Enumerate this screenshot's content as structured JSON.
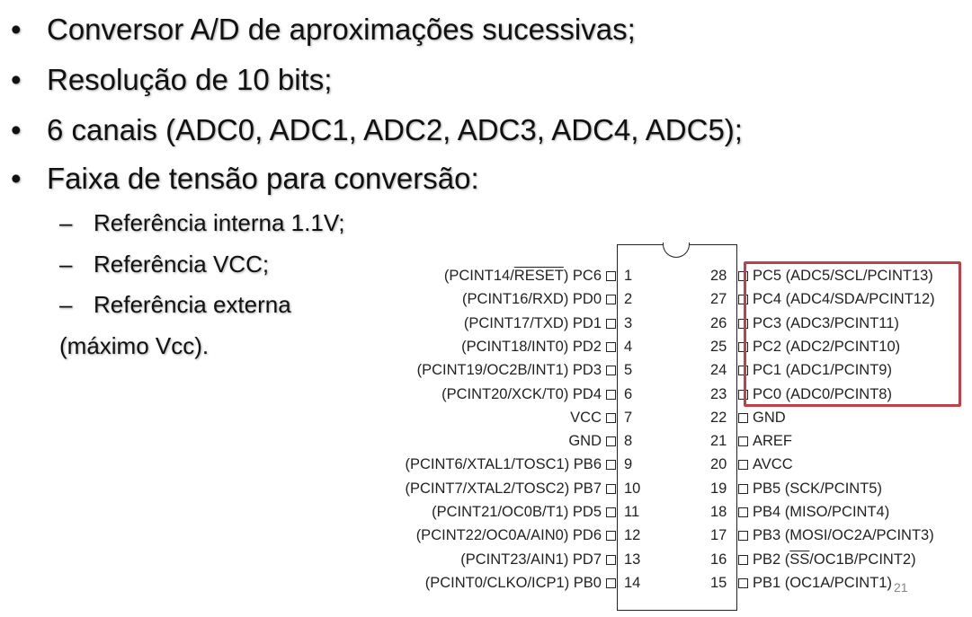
{
  "bullets": [
    "Conversor A/D de aproximações sucessivas;",
    "Resolução de 10 bits;",
    "6 canais (ADC0, ADC1, ADC2, ADC3, ADC4, ADC5);",
    "Faixa de tensão para conversão:"
  ],
  "sub_bullets": [
    "Referência interna 1.1V;",
    "Referência VCC;",
    "Referência externa"
  ],
  "note": "(máximo Vcc).",
  "bullet_glyph": "•",
  "dash_glyph": "–",
  "chip": {
    "left_pins": [
      {
        "num": "1",
        "pre": "(PCINT14/",
        "ov": "RESET",
        "post": ") PC6"
      },
      {
        "num": "2",
        "pre": "(PCINT16/RXD) PD0",
        "ov": "",
        "post": ""
      },
      {
        "num": "3",
        "pre": "(PCINT17/TXD) PD1",
        "ov": "",
        "post": ""
      },
      {
        "num": "4",
        "pre": "(PCINT18/INT0) PD2",
        "ov": "",
        "post": ""
      },
      {
        "num": "5",
        "pre": "(PCINT19/OC2B/INT1) PD3",
        "ov": "",
        "post": ""
      },
      {
        "num": "6",
        "pre": "(PCINT20/XCK/T0) PD4",
        "ov": "",
        "post": ""
      },
      {
        "num": "7",
        "pre": "VCC",
        "ov": "",
        "post": ""
      },
      {
        "num": "8",
        "pre": "GND",
        "ov": "",
        "post": ""
      },
      {
        "num": "9",
        "pre": "(PCINT6/XTAL1/TOSC1) PB6",
        "ov": "",
        "post": ""
      },
      {
        "num": "10",
        "pre": "(PCINT7/XTAL2/TOSC2) PB7",
        "ov": "",
        "post": ""
      },
      {
        "num": "11",
        "pre": "(PCINT21/OC0B/T1) PD5",
        "ov": "",
        "post": ""
      },
      {
        "num": "12",
        "pre": "(PCINT22/OC0A/AIN0) PD6",
        "ov": "",
        "post": ""
      },
      {
        "num": "13",
        "pre": "(PCINT23/AIN1) PD7",
        "ov": "",
        "post": ""
      },
      {
        "num": "14",
        "pre": "(PCINT0/CLKO/ICP1) PB0",
        "ov": "",
        "post": ""
      }
    ],
    "right_pins": [
      {
        "num": "28",
        "pre": "PC5 (ADC5/SCL/PCINT13)",
        "ov": "",
        "post": ""
      },
      {
        "num": "27",
        "pre": "PC4 (ADC4/SDA/PCINT12)",
        "ov": "",
        "post": ""
      },
      {
        "num": "26",
        "pre": "PC3 (ADC3/PCINT11)",
        "ov": "",
        "post": ""
      },
      {
        "num": "25",
        "pre": "PC2 (ADC2/PCINT10)",
        "ov": "",
        "post": ""
      },
      {
        "num": "24",
        "pre": "PC1 (ADC1/PCINT9)",
        "ov": "",
        "post": ""
      },
      {
        "num": "23",
        "pre": "PC0 (ADC0/PCINT8)",
        "ov": "",
        "post": ""
      },
      {
        "num": "22",
        "pre": "GND",
        "ov": "",
        "post": ""
      },
      {
        "num": "21",
        "pre": "AREF",
        "ov": "",
        "post": ""
      },
      {
        "num": "20",
        "pre": "AVCC",
        "ov": "",
        "post": ""
      },
      {
        "num": "19",
        "pre": "PB5 (SCK/PCINT5)",
        "ov": "",
        "post": ""
      },
      {
        "num": "18",
        "pre": "PB4 (MISO/PCINT4)",
        "ov": "",
        "post": ""
      },
      {
        "num": "17",
        "pre": "PB3 (MOSI/OC2A/PCINT3)",
        "ov": "",
        "post": ""
      },
      {
        "num": "16",
        "pre": "PB2 (",
        "ov": "SS",
        "post": "/OC1B/PCINT2)"
      },
      {
        "num": "15",
        "pre": "PB1 (OC1A/PCINT1)",
        "ov": "",
        "post": ""
      }
    ],
    "highlight_color": "#c0404a"
  },
  "slide_number": "21"
}
